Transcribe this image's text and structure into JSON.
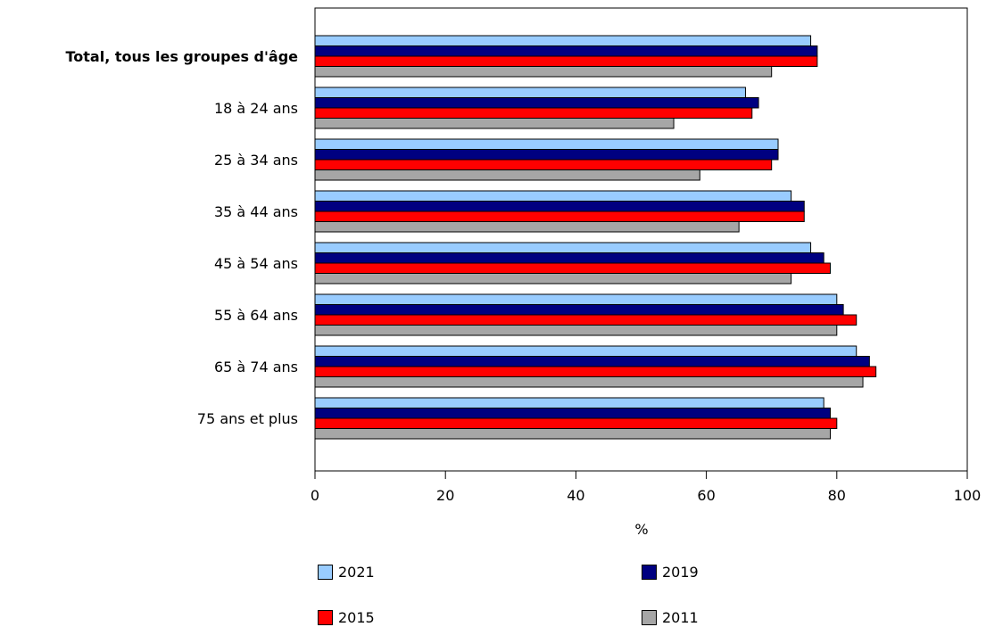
{
  "chart_data": {
    "type": "bar",
    "orientation": "horizontal",
    "categories": [
      "Total, tous les groupes d'âge",
      "18 à 24 ans",
      "25 à 34 ans",
      "35 à 44 ans",
      "45 à 54 ans",
      "55 à 64 ans",
      "65 à 74 ans",
      "75 ans et plus"
    ],
    "bold_categories": [
      "Total, tous les groupes d'âge"
    ],
    "series": [
      {
        "name": "2021",
        "color": "#99ccff",
        "values": [
          76,
          66,
          71,
          73,
          76,
          80,
          83,
          78
        ]
      },
      {
        "name": "2019",
        "color": "#000080",
        "values": [
          77,
          68,
          71,
          75,
          78,
          81,
          85,
          79
        ]
      },
      {
        "name": "2015",
        "color": "#ff0000",
        "values": [
          77,
          67,
          70,
          75,
          79,
          83,
          86,
          80
        ]
      },
      {
        "name": "2011",
        "color": "#a6a6a6",
        "values": [
          70,
          55,
          59,
          65,
          73,
          80,
          84,
          79
        ]
      }
    ],
    "xlabel": "%",
    "xlim": [
      0,
      100
    ],
    "xticks": [
      "0",
      "20",
      "40",
      "60",
      "80",
      "100"
    ],
    "grid": false,
    "legend_position": "bottom"
  }
}
